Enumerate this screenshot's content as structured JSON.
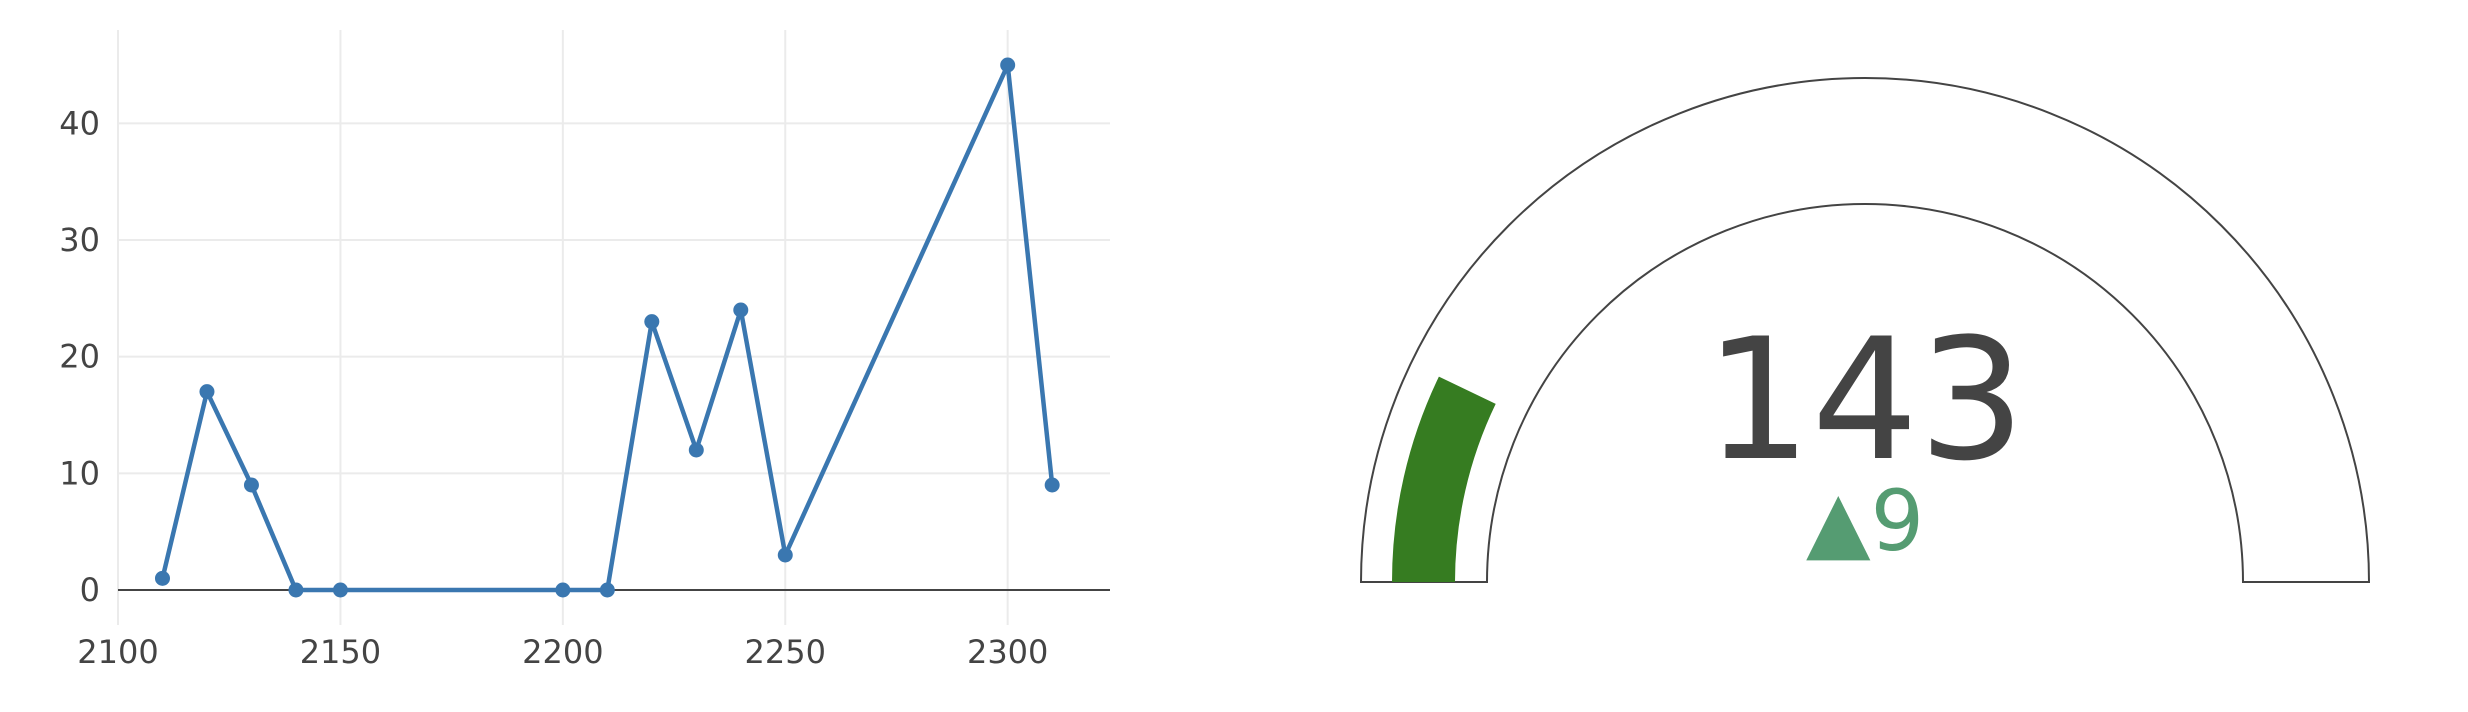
{
  "chart_data": [
    {
      "type": "line",
      "title": "",
      "xlabel": "",
      "ylabel": "",
      "x": [
        2110,
        2120,
        2130,
        2140,
        2150,
        2200,
        2210,
        2220,
        2230,
        2240,
        2250,
        2300,
        2310
      ],
      "series": [
        {
          "values": [
            1,
            17,
            9,
            0,
            0,
            0,
            0,
            23,
            12,
            24,
            3,
            45,
            9
          ],
          "color": "#3a77b0"
        }
      ],
      "xlim": [
        2100,
        2323
      ],
      "ylim": [
        -3,
        48
      ],
      "xticks": [
        2100,
        2150,
        2200,
        2250,
        2300
      ],
      "yticks": [
        0,
        10,
        20,
        30,
        40
      ],
      "xtick_labels": [
        "2100",
        "2150",
        "2200",
        "2250",
        "2300"
      ],
      "ytick_labels": [
        "0",
        "10",
        "20",
        "30",
        "40"
      ],
      "grid": true,
      "markers": true
    },
    {
      "type": "gauge",
      "value": 143,
      "value_label": "143",
      "delta": 9,
      "delta_label": "9",
      "delta_symbol": "▲",
      "range": [
        0,
        1000
      ],
      "bar_color": "#367c21",
      "delta_color": "#559c72",
      "outline_color": "#444444"
    }
  ]
}
